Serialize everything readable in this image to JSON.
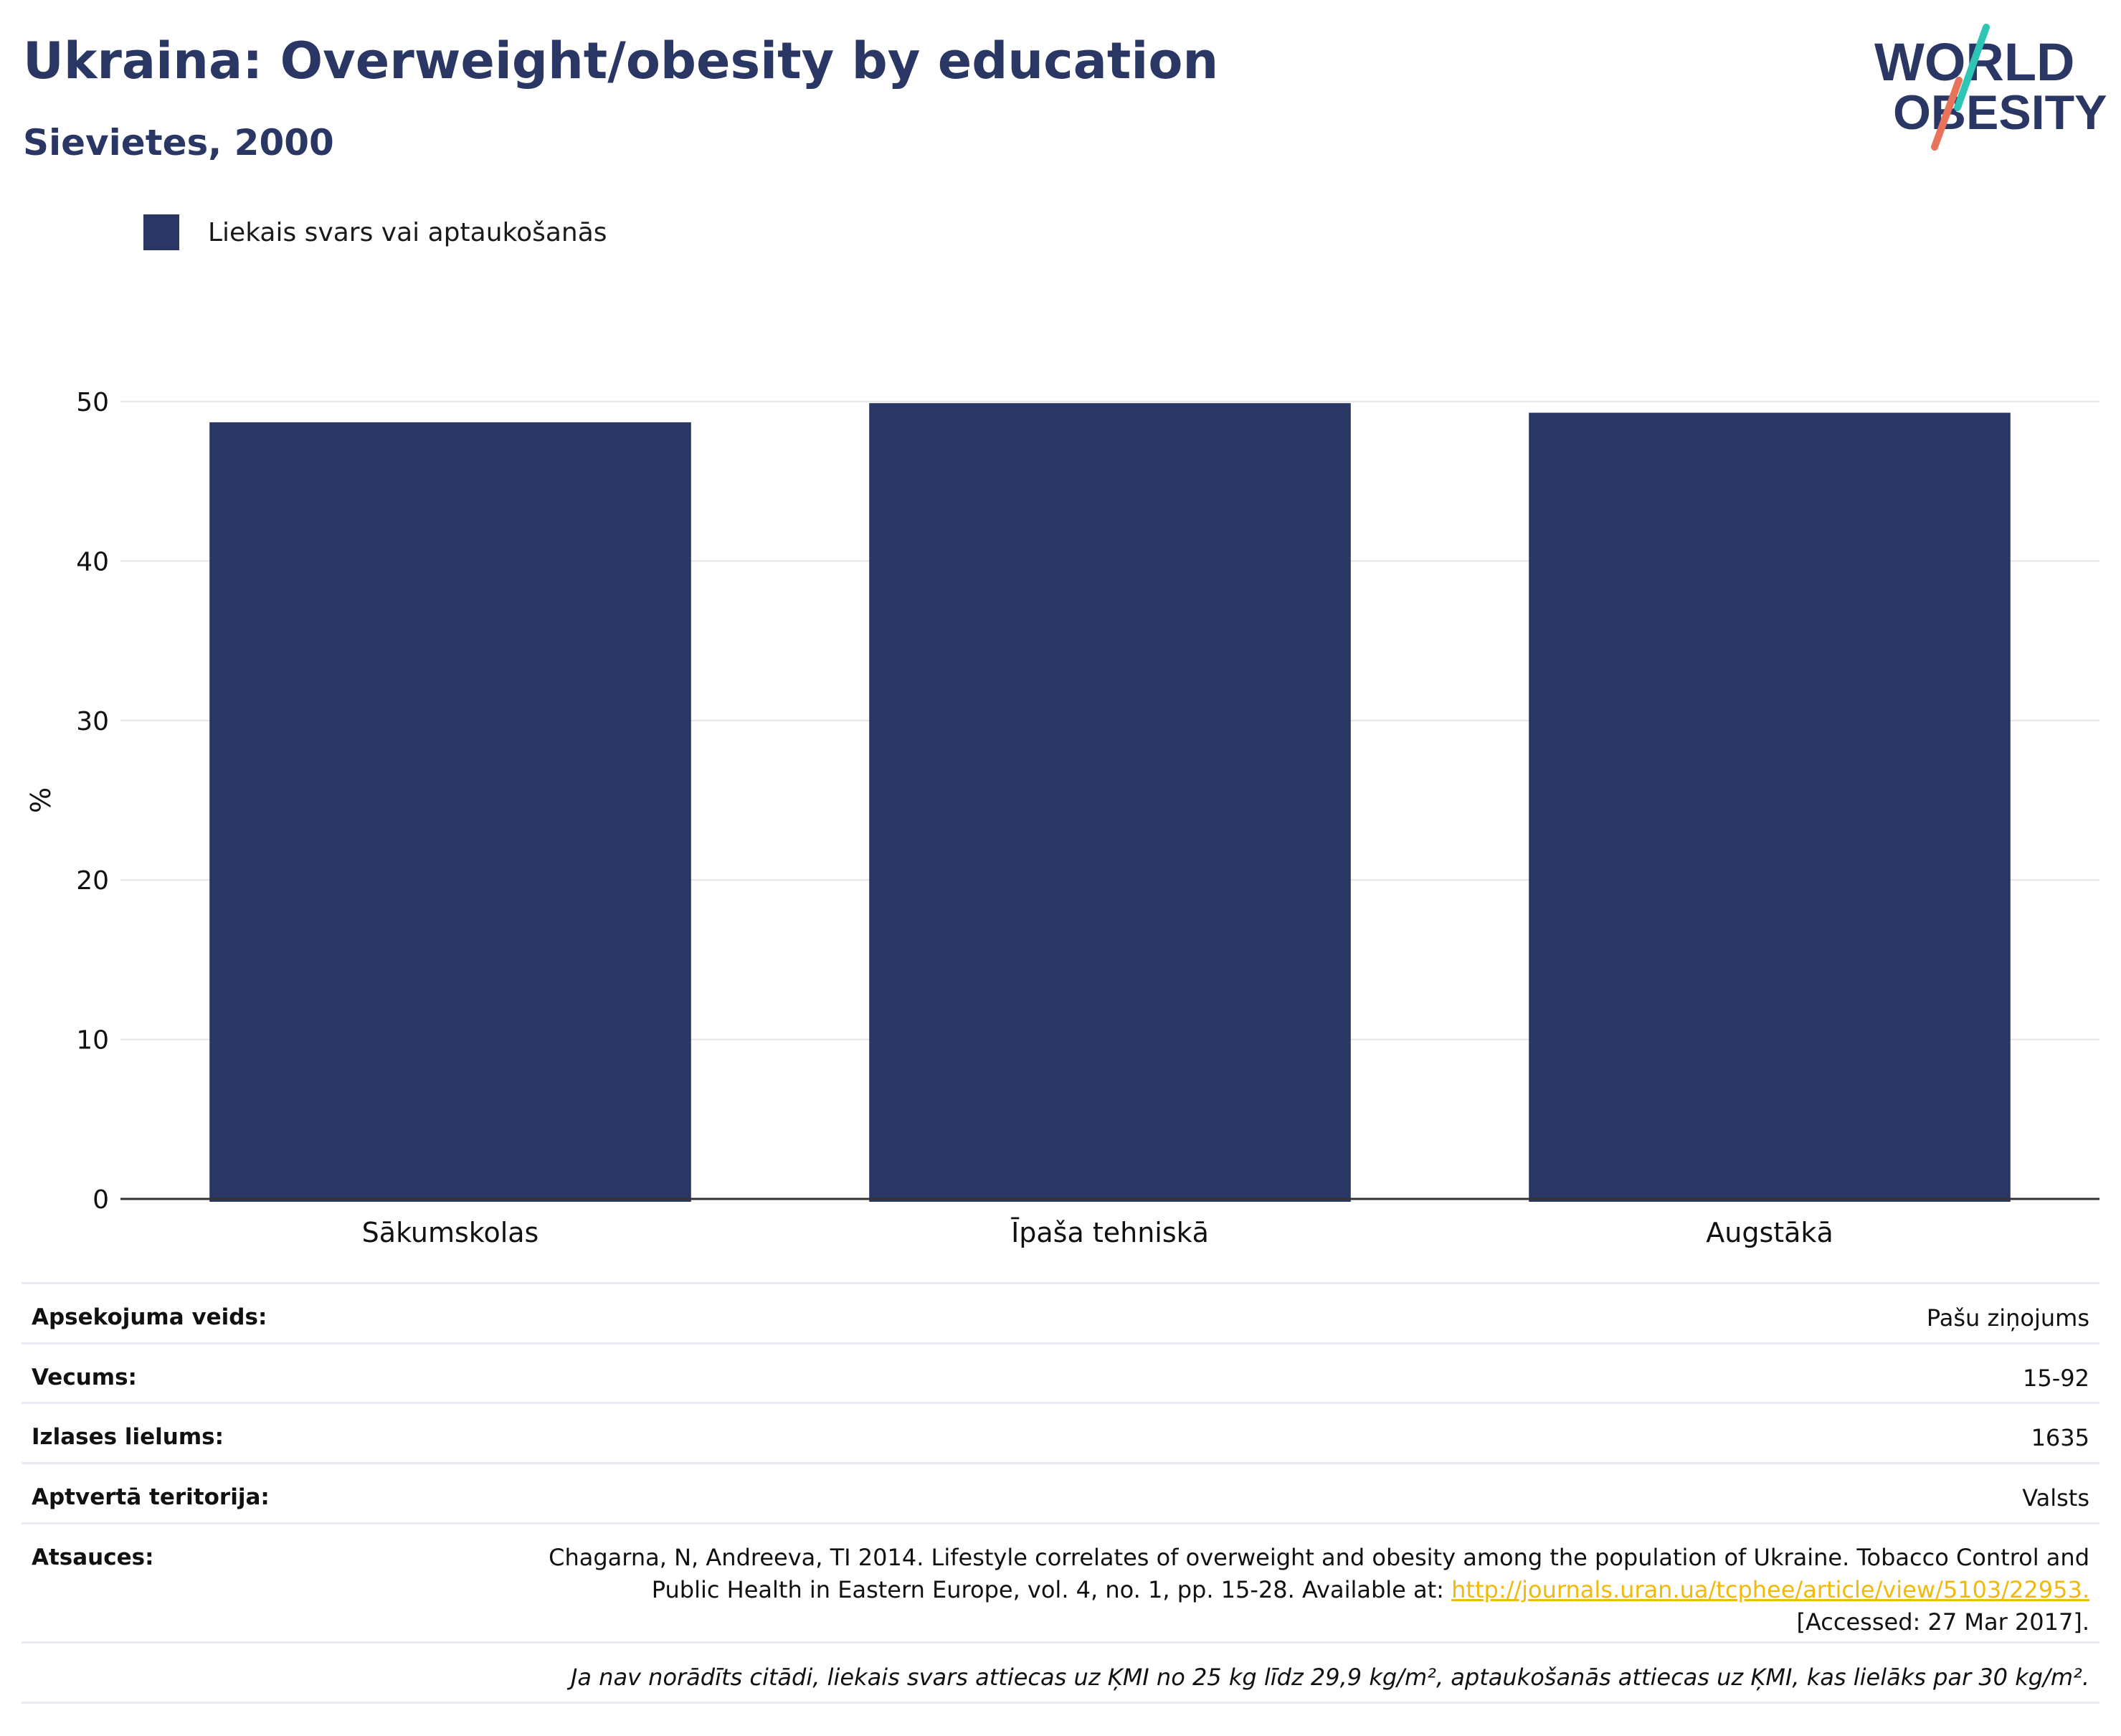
{
  "header": {
    "title": "Ukraina: Overweight/obesity by education",
    "subtitle": "Sievietes, 2000"
  },
  "logo": {
    "line1": "WORLD",
    "line2": "OBESITY",
    "colors": {
      "text": "#2a3663",
      "slash_top": "#2ec4b6",
      "slash_bottom": "#e8735a"
    }
  },
  "legend": {
    "label": "Liekais svars vai aptaukošanās",
    "color": "#2a3663"
  },
  "chart_data": {
    "type": "bar",
    "categories": [
      "Sākumskolas",
      "Īpaša tehniskā",
      "Augstākā"
    ],
    "series": [
      {
        "name": "Liekais svars vai aptaukošanās",
        "values": [
          48.7,
          49.9,
          49.3
        ],
        "color": "#2a3663"
      }
    ],
    "ylabel": "%",
    "ylim": [
      0,
      50
    ],
    "yticks": [
      0,
      10,
      20,
      30,
      40,
      50
    ],
    "grid": true,
    "legend_position": "top-left"
  },
  "info": {
    "survey_type": {
      "label": "Apsekojuma veids:",
      "value": "Pašu ziņojums"
    },
    "age": {
      "label": "Vecums:",
      "value": "15-92"
    },
    "sample_size": {
      "label": "Izlases lielums:",
      "value": "1635"
    },
    "coverage": {
      "label": "Aptvertā teritorija:",
      "value": "Valsts"
    },
    "references": {
      "label": "Atsauces:",
      "text_before": "Chagarna, N, Andreeva, TI 2014. Lifestyle correlates of overweight and obesity among the population of Ukraine. Tobacco Control and Public Health in Eastern Europe, vol. 4, no. 1, pp. 15-28. Available at: ",
      "link": "http://journals.uran.ua/tcphee/article/view/5103/22953.",
      "text_after": " [Accessed: 27 Mar 2017]."
    },
    "note": "Ja nav norādīts citādi, liekais svars attiecas uz ĶMI no 25 kg līdz 29,9 kg/m², aptaukošanās attiecas uz ĶMI, kas lielāks par 30 kg/m²."
  }
}
